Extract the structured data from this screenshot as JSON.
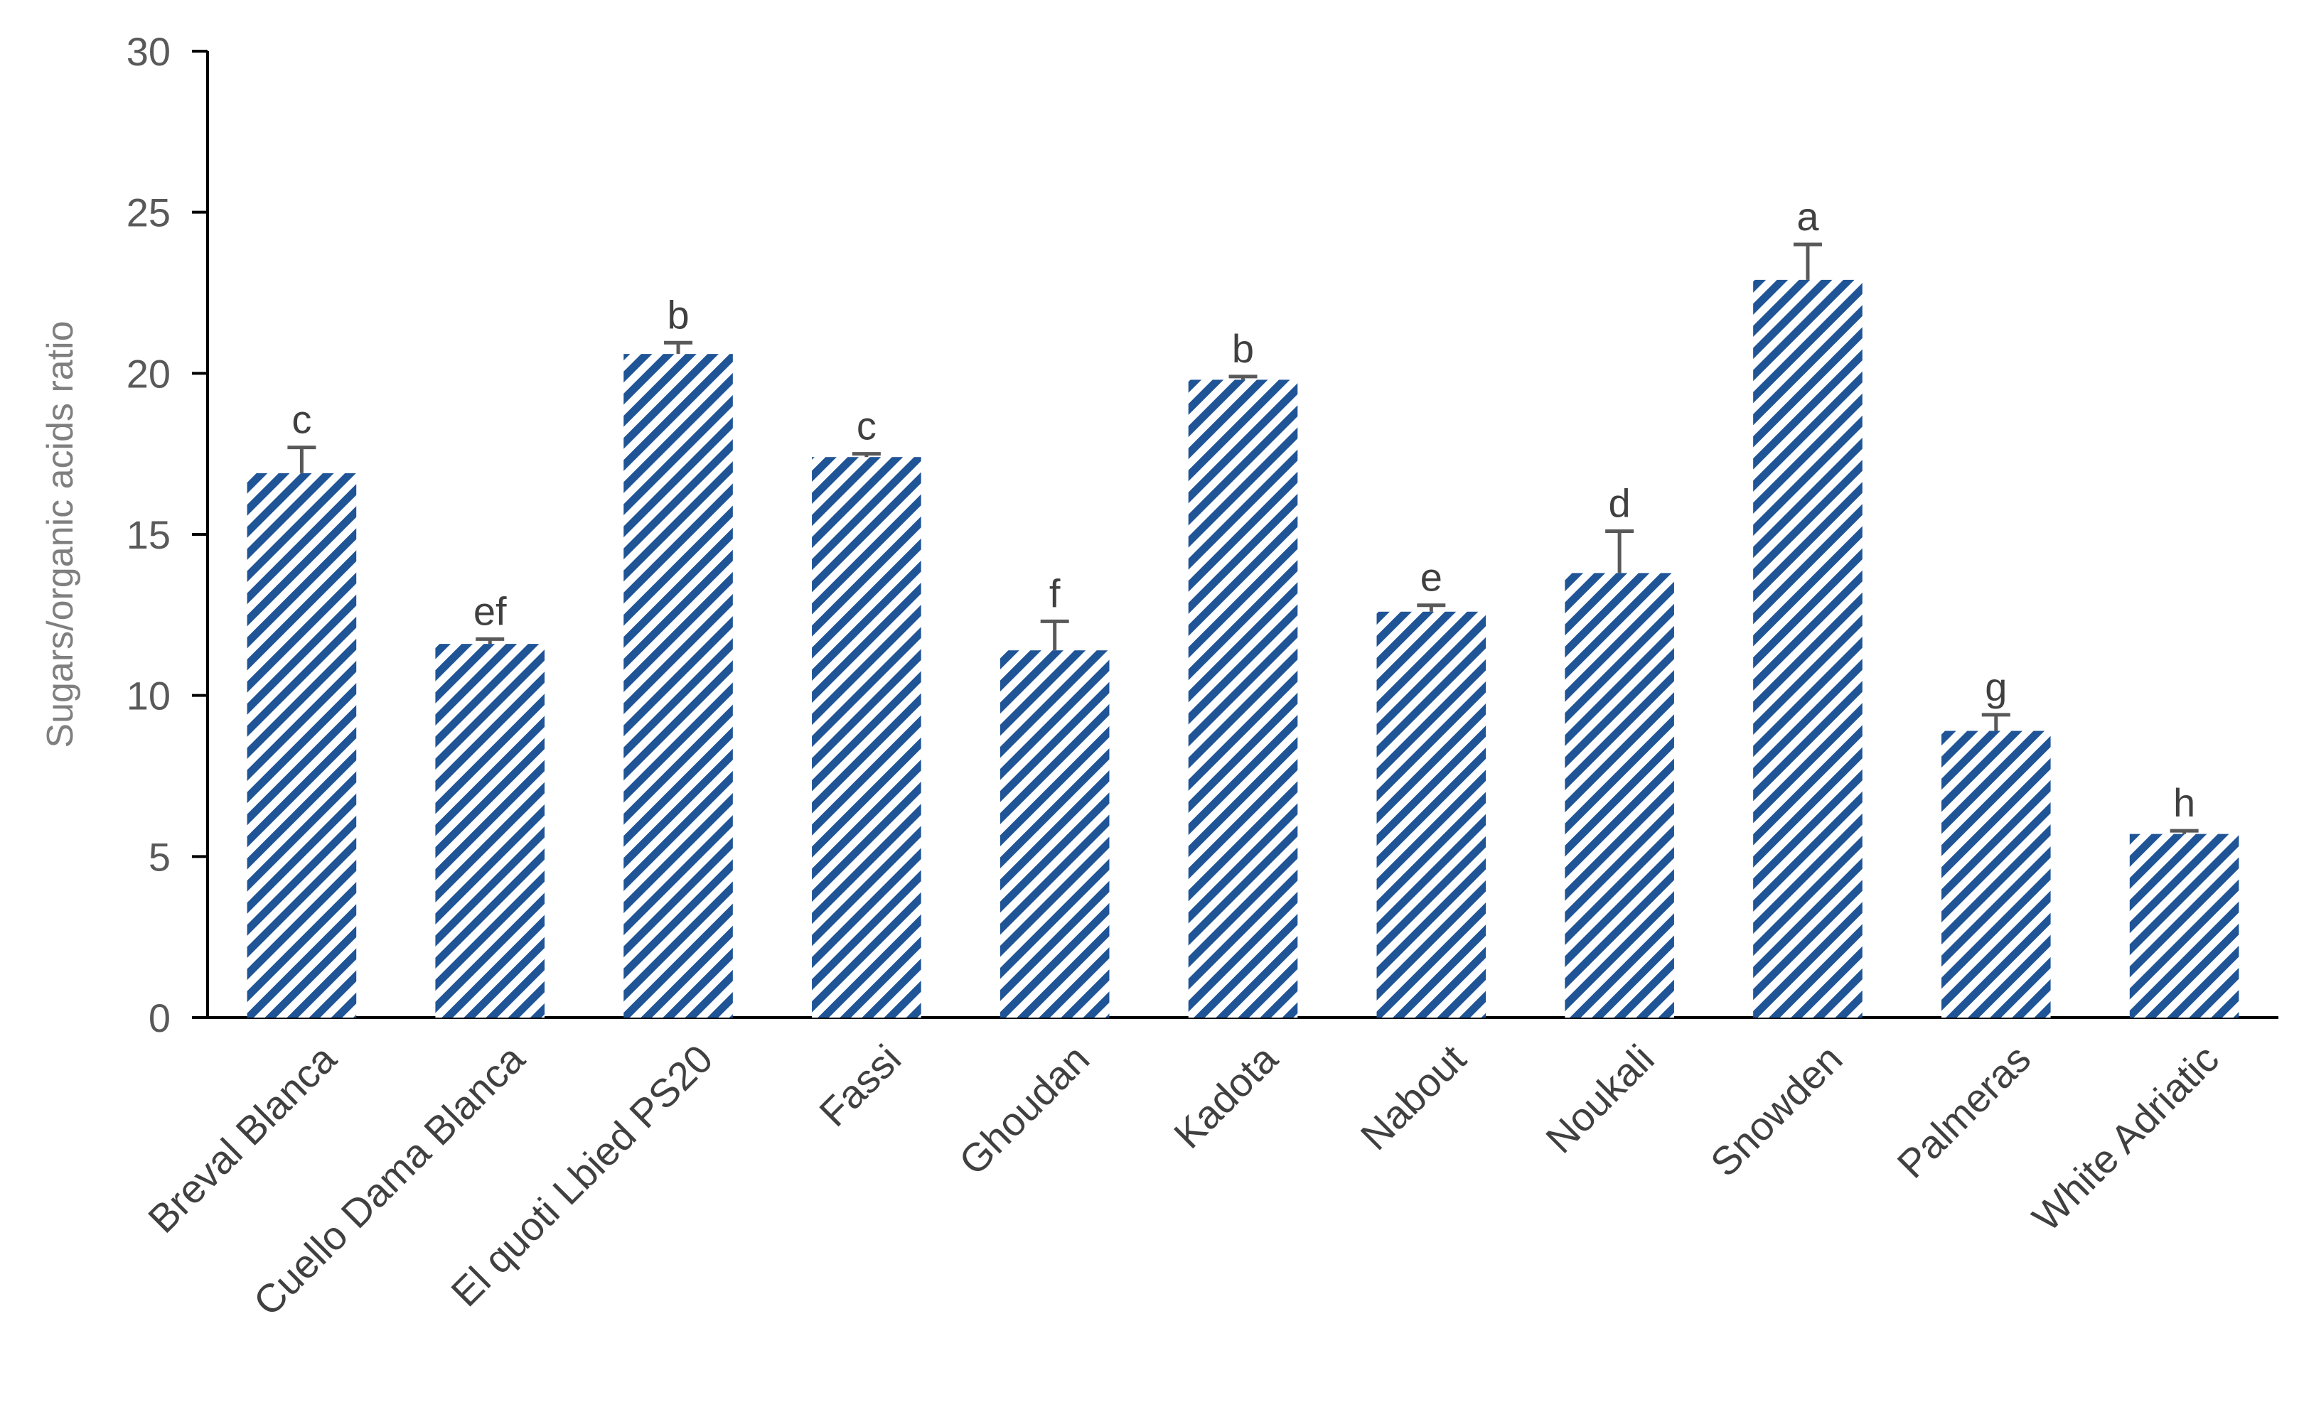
{
  "chart_data": {
    "type": "bar",
    "title": "",
    "xlabel": "",
    "ylabel": "Sugars/organic acids ratio",
    "ylim": [
      0,
      30
    ],
    "yticks": [
      0,
      5,
      10,
      15,
      20,
      25,
      30
    ],
    "grid": false,
    "legend": "none",
    "categories": [
      "Breval Blanca",
      "Cuello Dama Blanca",
      "El quoti Lbied PS20",
      "Fassi",
      "Ghoudan",
      "Kadota",
      "Nabout",
      "Noukali",
      "Snowden",
      "Palmeras",
      "White Adriatic"
    ],
    "values": [
      16.9,
      11.6,
      20.6,
      17.4,
      11.4,
      19.8,
      12.6,
      13.8,
      22.9,
      8.9,
      5.7
    ],
    "errors": [
      0.8,
      0.15,
      0.35,
      0.1,
      0.9,
      0.1,
      0.2,
      1.3,
      1.1,
      0.5,
      0.1
    ],
    "significance_letters": [
      "c",
      "ef",
      "b",
      "c",
      "f",
      "b",
      "e",
      "d",
      "a",
      "g",
      "h"
    ],
    "colors": {
      "bar_stripe": "#1f5496",
      "axis": "#000000",
      "error_bar": "#595959"
    }
  }
}
